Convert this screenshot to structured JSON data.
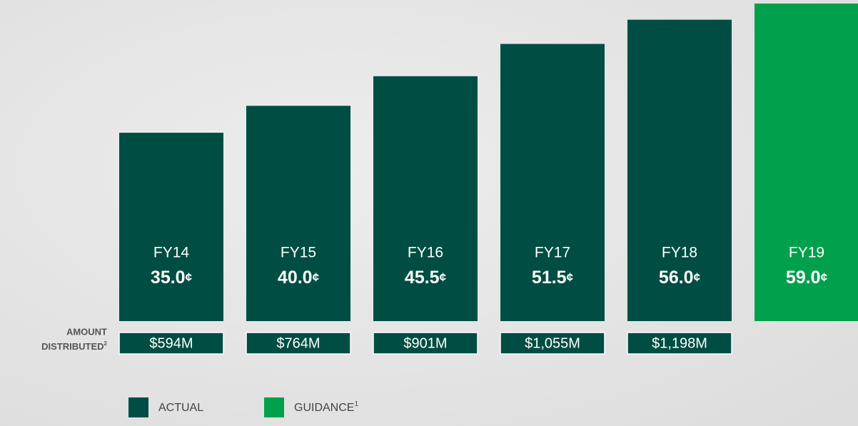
{
  "chart_data": {
    "type": "bar",
    "categories": [
      "FY14",
      "FY15",
      "FY16",
      "FY17",
      "FY18",
      "FY19"
    ],
    "series": [
      {
        "name": "ACTUAL",
        "color": "#004d43",
        "values": [
          35.0,
          40.0,
          45.5,
          51.5,
          56.0,
          null
        ],
        "value_labels": [
          "35.0¢",
          "40.0¢",
          "45.5¢",
          "51.5¢",
          "56.0¢",
          null
        ]
      },
      {
        "name": "GUIDANCE",
        "name_note": "1",
        "color": "#00a04c",
        "values": [
          null,
          null,
          null,
          null,
          null,
          59.0
        ],
        "value_labels": [
          null,
          null,
          null,
          null,
          null,
          "59.0¢"
        ]
      }
    ],
    "ylim": [
      0,
      59
    ],
    "amount_distributed": {
      "label": [
        "AMOUNT",
        "DISTRIBUTED"
      ],
      "label_note": "2",
      "values": [
        "$594M",
        "$764M",
        "$901M",
        "$1,055M",
        "$1,198M",
        null
      ]
    }
  }
}
